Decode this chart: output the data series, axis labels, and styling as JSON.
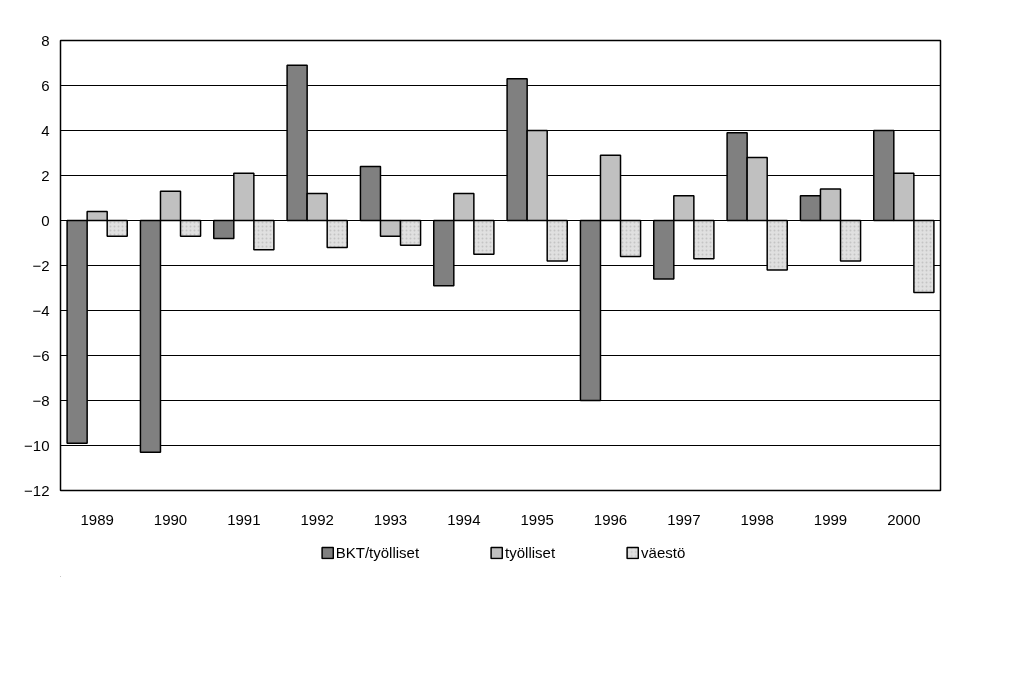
{
  "chart_data": {
    "type": "bar",
    "categories": [
      "1989",
      "1990",
      "1991",
      "1992",
      "1993",
      "1994",
      "1995",
      "1996",
      "1997",
      "1998",
      "1999",
      "2000"
    ],
    "series": [
      {
        "name": "BKT/työlliset",
        "color": "#808080",
        "values": [
          -9.9,
          -10.3,
          -0.8,
          6.9,
          2.4,
          -2.9,
          6.3,
          -8.0,
          -2.6,
          3.9,
          1.1,
          4.0
        ]
      },
      {
        "name": "työlliset",
        "color": "#c0c0c0",
        "values": [
          0.4,
          1.3,
          2.1,
          1.2,
          -0.7,
          1.2,
          4.0,
          2.9,
          1.1,
          2.8,
          1.4,
          2.1
        ]
      },
      {
        "name": "väestö",
        "color": "#e0e0e0",
        "values": [
          -0.7,
          -0.7,
          -1.3,
          -1.2,
          -1.1,
          -1.5,
          -1.8,
          -1.6,
          -1.7,
          -2.2,
          -1.8,
          -3.2
        ]
      }
    ],
    "ylim": [
      -12,
      8
    ],
    "yticks": [
      -12,
      -10,
      -8,
      -6,
      -4,
      -2,
      0,
      2,
      4,
      6,
      8
    ],
    "grid": "y",
    "legend": "bottom"
  }
}
